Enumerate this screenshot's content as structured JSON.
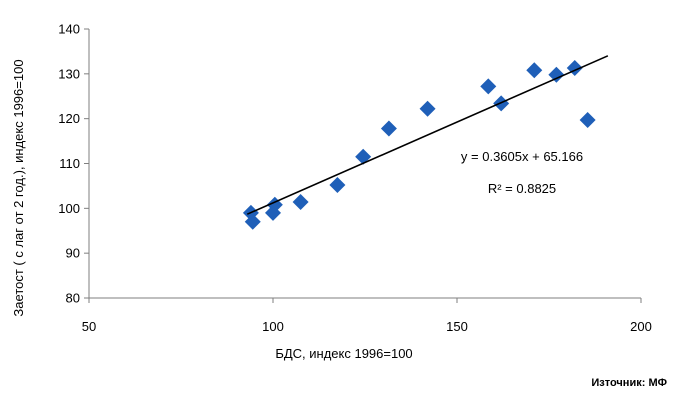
{
  "chart_data": {
    "type": "scatter",
    "title": "",
    "xlabel": "БДС, индекс 1996=100",
    "ylabel": "Заетост ( с лаг от 2 год.), индекс 1996=100",
    "xlim": [
      50,
      200
    ],
    "ylim": [
      80,
      140
    ],
    "x_ticks": [
      50,
      100,
      150,
      200
    ],
    "y_ticks": [
      80,
      90,
      100,
      110,
      120,
      130,
      140
    ],
    "grid": false,
    "legend": "none",
    "marker": "diamond",
    "marker_color": "#1f5fb8",
    "trendline_color": "#000000",
    "points": [
      {
        "x": 94.0,
        "y": 99.0
      },
      {
        "x": 94.5,
        "y": 97.0
      },
      {
        "x": 100.0,
        "y": 99.0
      },
      {
        "x": 100.5,
        "y": 100.8
      },
      {
        "x": 107.5,
        "y": 101.4
      },
      {
        "x": 117.5,
        "y": 105.2
      },
      {
        "x": 124.5,
        "y": 111.5
      },
      {
        "x": 131.5,
        "y": 117.8
      },
      {
        "x": 142.0,
        "y": 122.2
      },
      {
        "x": 158.5,
        "y": 127.2
      },
      {
        "x": 162.0,
        "y": 123.4
      },
      {
        "x": 171.0,
        "y": 130.8
      },
      {
        "x": 177.0,
        "y": 129.8
      },
      {
        "x": 182.0,
        "y": 131.3
      },
      {
        "x": 185.5,
        "y": 119.7
      }
    ],
    "trendline": {
      "type": "linear",
      "slope": 0.3605,
      "intercept": 65.166,
      "x_range": [
        93,
        191
      ],
      "equation": "y = 0.3605x + 65.166",
      "r_squared": "R² = 0.8825"
    }
  },
  "source": "Източник: МФ"
}
